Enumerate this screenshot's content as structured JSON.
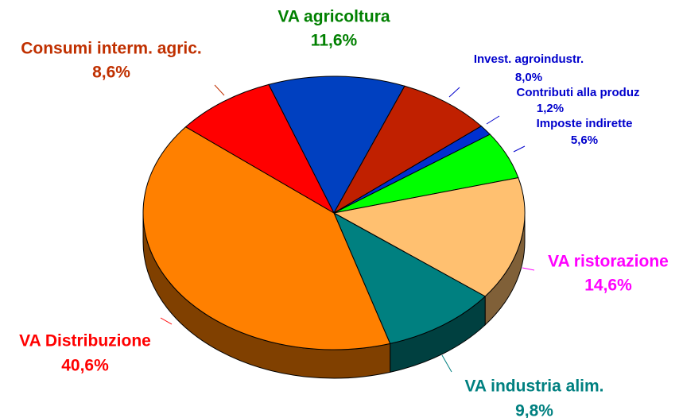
{
  "chart_data": {
    "type": "pie",
    "categories": [
      "VA agricoltura",
      "Invest. agroindustr.",
      "Contributi alla produz",
      "Imposte indirette",
      "VA ristorazione",
      "VA industria alim.",
      "VA Distribuzione",
      "Consumi interm. agric."
    ],
    "values": [
      11.6,
      8.0,
      1.2,
      5.6,
      14.6,
      9.8,
      40.6,
      8.6
    ],
    "value_labels": [
      "11,6%",
      "8,0%",
      "1,2%",
      "5,6%",
      "14,6%",
      "9,8%",
      "40,6%",
      "8,6%"
    ],
    "colors": [
      "#0040c0",
      "#c02000",
      "#0030d0",
      "#00ff00",
      "#ffc070",
      "#008080",
      "#ff8000",
      "#ff0000"
    ],
    "label_colors": [
      "#008000",
      "#0000cc",
      "#0000cc",
      "#0000cc",
      "#ff00ff",
      "#008080",
      "#ff0000",
      "#c03000"
    ]
  }
}
